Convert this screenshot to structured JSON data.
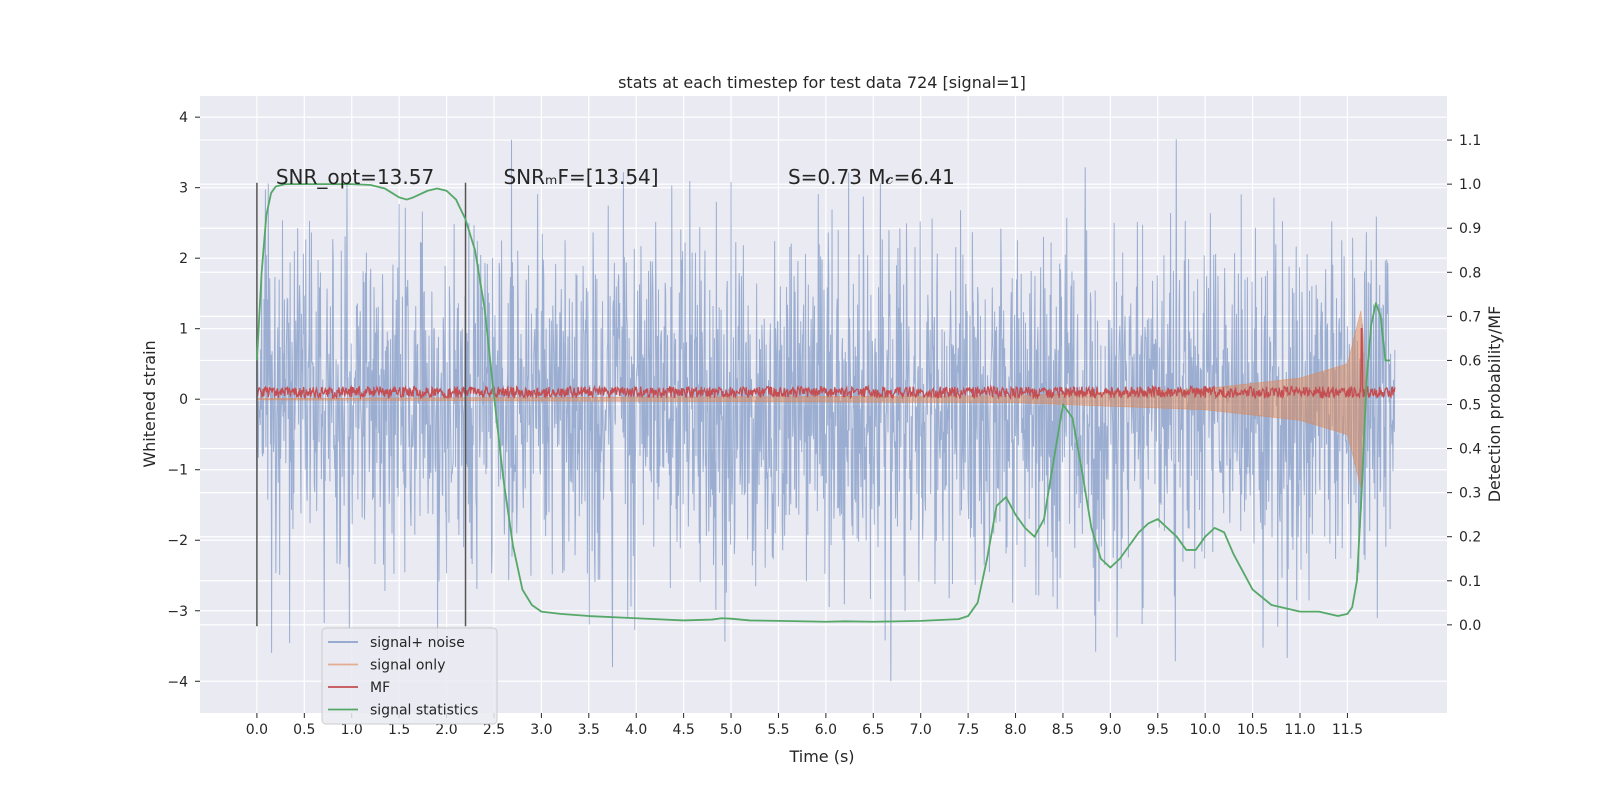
{
  "chart_data": {
    "type": "line",
    "title": "stats at each timestep for test data 724 [signal=1]",
    "xlabel": "Time (s)",
    "ylabel": "Whitened strain",
    "y2label": "Detection probability/MF",
    "xlim": [
      -0.6,
      12.55
    ],
    "ylim": [
      -4.45,
      4.3
    ],
    "y2lim": [
      -0.2,
      1.2
    ],
    "xticks": [
      "0.0",
      "0.5",
      "1.0",
      "1.5",
      "2.0",
      "2.5",
      "3.0",
      "3.5",
      "4.0",
      "4.5",
      "5.0",
      "5.5",
      "6.0",
      "6.5",
      "7.0",
      "7.5",
      "8.0",
      "8.5",
      "9.0",
      "9.5",
      "10.0",
      "10.5",
      "11.0",
      "11.5"
    ],
    "yticks": [
      "−4",
      "−3",
      "−2",
      "−1",
      "0",
      "1",
      "2",
      "3",
      "4"
    ],
    "y2ticks": [
      "0.0",
      "0.1",
      "0.2",
      "0.3",
      "0.4",
      "0.5",
      "0.6",
      "0.7",
      "0.8",
      "0.9",
      "1.0",
      "1.1"
    ],
    "grid": true,
    "legend_position": "lower-left",
    "colors": {
      "signal_noise": "#4c72b0",
      "signal_only": "#dd8452",
      "mf": "#c44e52",
      "stats": "#55a868",
      "vlines": "#555555",
      "background": "#eaeaf2"
    },
    "annotations": [
      {
        "text": "SNR_opt=13.57",
        "x": 0.2,
        "y": 3.05
      },
      {
        "text": "SNRₘF=[13.54]",
        "x": 2.6,
        "y": 3.05
      },
      {
        "text": "S=0.73   M𝒸=6.41",
        "x": 5.6,
        "y": 3.05
      }
    ],
    "vlines_x": [
      0.0,
      2.2
    ],
    "series": [
      {
        "name": "signal+ noise",
        "envelope_upper_typical": 2.0,
        "envelope_lower_typical": -2.0,
        "peak_max": 3.9,
        "peak_min": -4.0,
        "x_range": [
          0.0,
          12.0
        ]
      },
      {
        "name": "signal only",
        "envelope_x": [
          0.0,
          8.0,
          10.0,
          11.0,
          11.5,
          11.65,
          11.7
        ],
        "envelope_amp": [
          0.01,
          0.05,
          0.15,
          0.3,
          0.5,
          1.3,
          0.0
        ]
      },
      {
        "name": "MF",
        "baseline": 0.1,
        "noise_amp": 0.08,
        "spike_x": 11.65,
        "spike_y": 1.0
      },
      {
        "name": "signal statistics",
        "x": [
          0.0,
          0.05,
          0.1,
          0.15,
          0.2,
          0.3,
          0.5,
          0.8,
          1.0,
          1.2,
          1.35,
          1.5,
          1.58,
          1.65,
          1.8,
          1.9,
          2.0,
          2.1,
          2.2,
          2.3,
          2.4,
          2.5,
          2.6,
          2.7,
          2.8,
          2.9,
          3.0,
          3.2,
          3.5,
          4.0,
          4.5,
          4.8,
          4.9,
          5.0,
          5.2,
          5.5,
          6.0,
          6.2,
          6.5,
          7.0,
          7.2,
          7.4,
          7.5,
          7.6,
          7.7,
          7.8,
          7.9,
          8.0,
          8.1,
          8.2,
          8.3,
          8.4,
          8.5,
          8.6,
          8.7,
          8.8,
          8.9,
          9.0,
          9.1,
          9.2,
          9.3,
          9.4,
          9.5,
          9.6,
          9.7,
          9.8,
          9.9,
          10.0,
          10.1,
          10.2,
          10.3,
          10.5,
          10.7,
          11.0,
          11.2,
          11.4,
          11.5,
          11.55,
          11.6,
          11.65,
          11.7,
          11.75,
          11.8,
          11.85,
          11.9,
          11.95
        ],
        "y": [
          0.6,
          0.8,
          0.93,
          0.98,
          0.995,
          1.0,
          1.0,
          1.0,
          1.0,
          0.998,
          0.99,
          0.97,
          0.965,
          0.97,
          0.985,
          0.99,
          0.985,
          0.965,
          0.92,
          0.85,
          0.72,
          0.52,
          0.33,
          0.18,
          0.08,
          0.045,
          0.03,
          0.025,
          0.02,
          0.015,
          0.01,
          0.012,
          0.015,
          0.014,
          0.01,
          0.009,
          0.007,
          0.008,
          0.007,
          0.009,
          0.011,
          0.013,
          0.02,
          0.05,
          0.15,
          0.27,
          0.29,
          0.25,
          0.22,
          0.2,
          0.24,
          0.37,
          0.5,
          0.47,
          0.35,
          0.22,
          0.15,
          0.13,
          0.15,
          0.18,
          0.21,
          0.23,
          0.24,
          0.22,
          0.2,
          0.17,
          0.17,
          0.2,
          0.22,
          0.21,
          0.16,
          0.08,
          0.045,
          0.03,
          0.03,
          0.02,
          0.025,
          0.04,
          0.1,
          0.3,
          0.55,
          0.68,
          0.73,
          0.7,
          0.6,
          0.6
        ]
      }
    ]
  }
}
